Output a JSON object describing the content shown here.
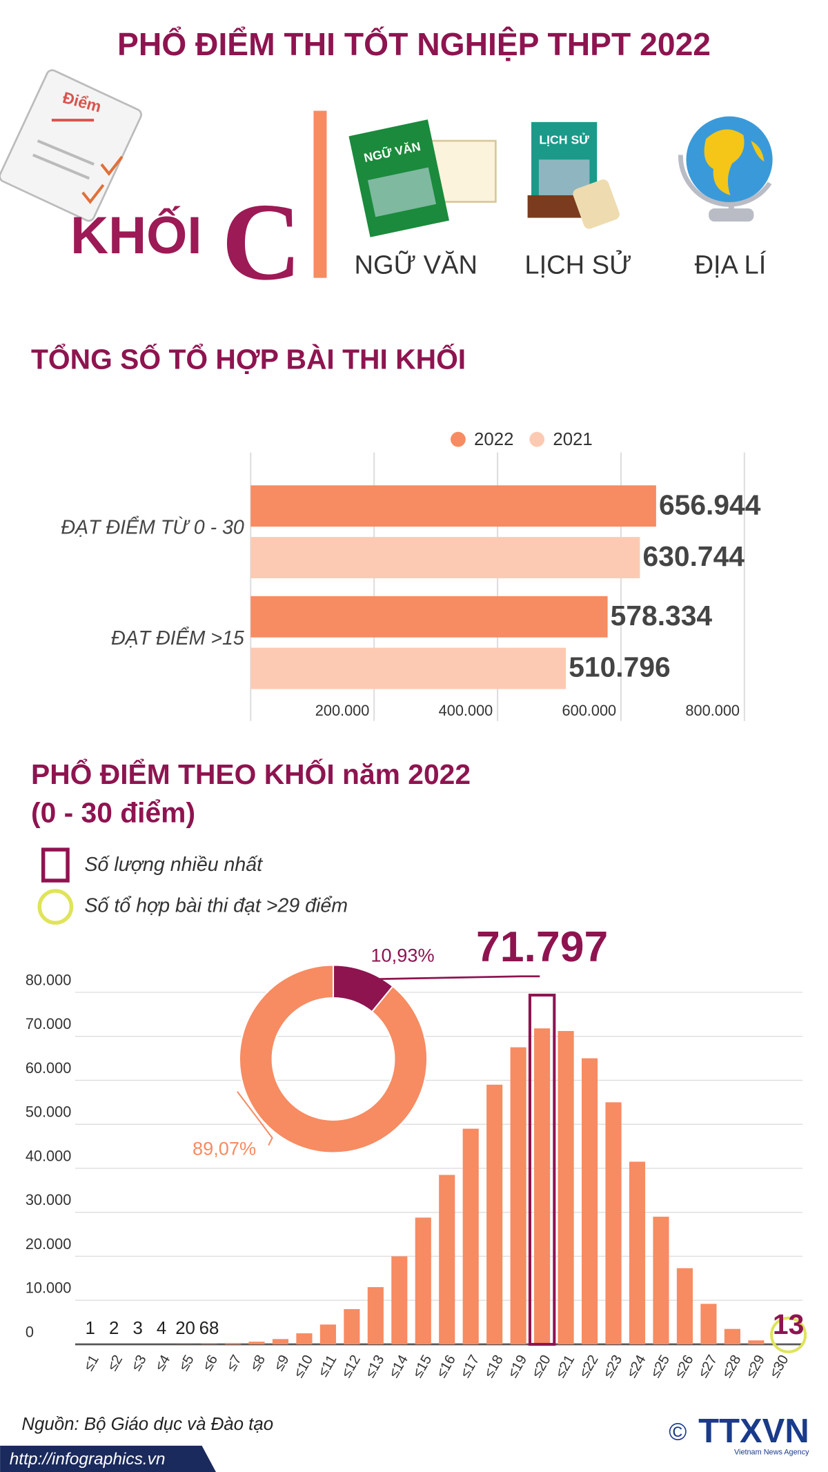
{
  "header": {
    "title": "PHỔ ĐIỂM THI TỐT NGHIỆP THPT 2022",
    "block": "KHỐI",
    "letter": "C",
    "subjects": [
      "NGỮ VĂN",
      "LỊCH SỬ",
      "ĐỊA LÍ"
    ],
    "icon_labels": [
      "Điểm",
      "NGỮ VĂN",
      "LỊCH SỬ"
    ]
  },
  "section_title": "TỔNG SỐ TỔ HỢP BÀI THI KHỐI",
  "chart_data": [
    {
      "type": "hbar",
      "categories": [
        "ĐẠT ĐIỂM TỪ 0 - 30",
        "ĐẠT ĐIỂM >15"
      ],
      "series": [
        {
          "name": "2022",
          "color": "#f78b62",
          "values": [
            656944,
            578334
          ],
          "value_labels": [
            "656.944",
            "578.334"
          ]
        },
        {
          "name": "2021",
          "color": "#fccab3",
          "values": [
            630744,
            510796
          ],
          "value_labels": [
            "630.744",
            "510.796"
          ]
        }
      ],
      "xlim": [
        0,
        800000
      ],
      "xticks": [
        {
          "value": 200000,
          "label": "200.000"
        },
        {
          "value": 400000,
          "label": "400.000"
        },
        {
          "value": 600000,
          "label": "600.000"
        },
        {
          "value": 800000,
          "label": "800.000"
        }
      ],
      "grid": true,
      "legend": "top"
    },
    {
      "type": "donut",
      "values": [
        10.93,
        89.07
      ],
      "value_labels": [
        "10,93%",
        "89,07%"
      ],
      "colors": [
        "#8e1450",
        "#f78b62"
      ]
    },
    {
      "type": "bar",
      "title": "PHỔ ĐIỂM THEO KHỐI năm 2022",
      "subtitle": "(0 - 30 điểm)",
      "legend": [
        "Số lượng nhiều nhất",
        "Số tổ hợp bài thi đạt >29 điểm"
      ],
      "categories": [
        "≤1",
        "≤2",
        "≤3",
        "≤4",
        "≤5",
        "≤6",
        "≤7",
        "≤8",
        "≤9",
        "≤10",
        "≤11",
        "≤12",
        "≤13",
        "≤14",
        "≤15",
        "≤16",
        "≤17",
        "≤18",
        "≤19",
        "≤20",
        "≤21",
        "≤22",
        "≤23",
        "≤24",
        "≤25",
        "≤26",
        "≤27",
        "≤28",
        "≤29",
        "≤30"
      ],
      "values": [
        1,
        2,
        3,
        4,
        20,
        68,
        300,
        600,
        1200,
        2500,
        4500,
        8000,
        13000,
        20000,
        28800,
        38500,
        49000,
        59000,
        67500,
        71797,
        71200,
        65000,
        55000,
        41500,
        29000,
        17300,
        9200,
        3500,
        900,
        13
      ],
      "value_labels": [
        "1",
        "2",
        "3",
        "4",
        "20",
        "68",
        null,
        null,
        null,
        null,
        null,
        null,
        null,
        null,
        null,
        null,
        null,
        null,
        null,
        "71.797",
        null,
        null,
        null,
        null,
        null,
        null,
        null,
        null,
        null,
        "13"
      ],
      "color": "#f78b62",
      "ylim": [
        0,
        80000
      ],
      "yticks": [
        0,
        {
          "value": 10000,
          "label": "10.000"
        },
        {
          "value": 20000,
          "label": "20.000"
        },
        {
          "value": 30000,
          "label": "30.000"
        },
        {
          "value": 40000,
          "label": "40.000"
        },
        {
          "value": 50000,
          "label": "50.000"
        },
        {
          "value": 60000,
          "label": "60.000"
        },
        {
          "value": 70000,
          "label": "70.000"
        },
        {
          "value": 80000,
          "label": "80.000"
        }
      ],
      "grid": true
    }
  ],
  "footer": {
    "source": "Nguồn: Bộ Giáo dục và Đào tạo",
    "site": "http://infographics.vn",
    "copyright": "©",
    "logo": "TTXVN",
    "agency": "Vietnam News Agency"
  }
}
